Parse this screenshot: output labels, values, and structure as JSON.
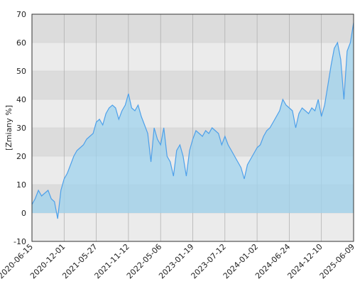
{
  "chart_data": {
    "type": "area",
    "y_label": "[Zmiany %]",
    "categories": [
      "2020-06-15",
      null,
      null,
      null,
      null,
      null,
      null,
      null,
      null,
      null,
      "2020-12-01",
      null,
      null,
      null,
      null,
      null,
      null,
      null,
      null,
      null,
      "2021-05-27",
      null,
      null,
      null,
      null,
      null,
      null,
      null,
      null,
      null,
      "2021-11-12",
      null,
      null,
      null,
      null,
      null,
      null,
      null,
      null,
      null,
      "2022-05-06",
      null,
      null,
      null,
      null,
      null,
      null,
      null,
      null,
      null,
      "2023-01-19",
      null,
      null,
      null,
      null,
      null,
      null,
      null,
      null,
      null,
      "2023-07-12",
      null,
      null,
      null,
      null,
      null,
      null,
      null,
      null,
      null,
      "2024-01-02",
      null,
      null,
      null,
      null,
      null,
      null,
      null,
      null,
      null,
      "2024-06-24",
      null,
      null,
      null,
      null,
      null,
      null,
      null,
      null,
      null,
      "2024-12-10",
      null,
      null,
      null,
      null,
      null,
      null,
      null,
      null,
      null,
      "2025-06-09"
    ],
    "values": [
      3,
      5,
      8,
      6,
      7,
      8,
      5,
      4,
      -2,
      8,
      12,
      14,
      17,
      20,
      22,
      23,
      24,
      26,
      27,
      28,
      32,
      33,
      31,
      35,
      37,
      38,
      37,
      33,
      36,
      38,
      42,
      37,
      36,
      38,
      34,
      31,
      28,
      18,
      30,
      26,
      24,
      30,
      20,
      18,
      13,
      22,
      24,
      20,
      13,
      22,
      26,
      29,
      28,
      27,
      29,
      28,
      30,
      29,
      28,
      24,
      27,
      24,
      22,
      20,
      18,
      16,
      12,
      17,
      19,
      21,
      23,
      24,
      27,
      29,
      30,
      32,
      34,
      36,
      40,
      38,
      37,
      36,
      30,
      35,
      37,
      36,
      35,
      37,
      36,
      40,
      34,
      38,
      45,
      52,
      58,
      60,
      54,
      40,
      57,
      60,
      67
    ],
    "color": "#4da0ea",
    "fill_color": "#9fd3ee",
    "band_colors": [
      "#dcdcdc",
      "#ebebeb"
    ],
    "ylim": [
      -10,
      70
    ],
    "yticks": [
      -10,
      0,
      10,
      20,
      30,
      40,
      50,
      60,
      70
    ],
    "grid": true
  }
}
